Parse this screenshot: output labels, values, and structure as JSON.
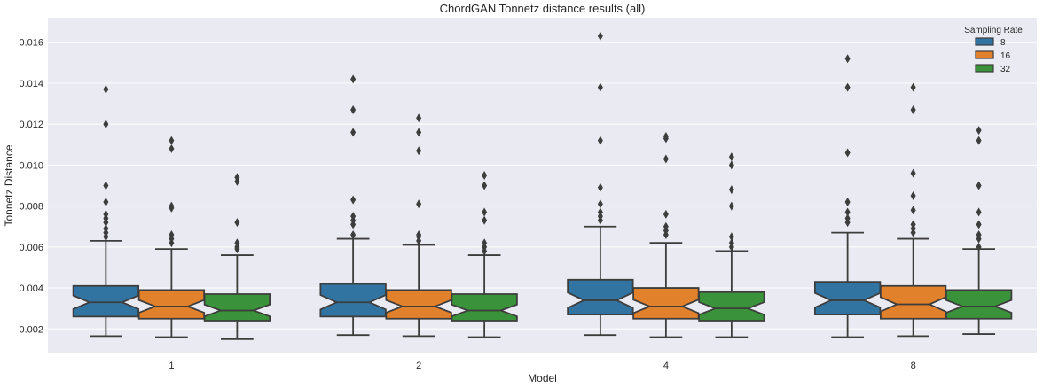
{
  "chart_data": {
    "type": "boxplot",
    "title": "ChordGAN Tonnetz distance results (all)",
    "xlabel": "Model",
    "ylabel": "Tonnetz Distance",
    "ylim": [
      0.0008,
      0.0172
    ],
    "yticks": [
      "0.002",
      "0.004",
      "0.006",
      "0.008",
      "0.010",
      "0.012",
      "0.014",
      "0.016"
    ],
    "grid": true,
    "legend": {
      "title": "Sampling Rate",
      "position": "top-right"
    },
    "categories": [
      "1",
      "2",
      "4",
      "8"
    ],
    "series": [
      {
        "name": "8",
        "color": "#3274a1",
        "boxes": [
          {
            "whislo": 0.00165,
            "q1": 0.0026,
            "med": 0.0033,
            "q3": 0.0041,
            "whishi": 0.0063,
            "fliers": [
              0.0065,
              0.0067,
              0.0069,
              0.0072,
              0.0074,
              0.0076,
              0.0082,
              0.009,
              0.012,
              0.0137
            ]
          },
          {
            "whislo": 0.0017,
            "q1": 0.0026,
            "med": 0.0033,
            "q3": 0.0042,
            "whishi": 0.0064,
            "fliers": [
              0.0066,
              0.0071,
              0.0073,
              0.0075,
              0.0083,
              0.0116,
              0.0127,
              0.0142
            ]
          },
          {
            "whislo": 0.0017,
            "q1": 0.0027,
            "med": 0.0034,
            "q3": 0.0044,
            "whishi": 0.007,
            "fliers": [
              0.0073,
              0.0075,
              0.0077,
              0.0081,
              0.0089,
              0.0112,
              0.0138,
              0.0163
            ]
          },
          {
            "whislo": 0.0016,
            "q1": 0.0027,
            "med": 0.0034,
            "q3": 0.0043,
            "whishi": 0.0067,
            "fliers": [
              0.0072,
              0.0074,
              0.0077,
              0.0082,
              0.0106,
              0.0138,
              0.0152
            ]
          }
        ]
      },
      {
        "name": "16",
        "color": "#e1812c",
        "boxes": [
          {
            "whislo": 0.0016,
            "q1": 0.0025,
            "med": 0.0031,
            "q3": 0.0039,
            "whishi": 0.0059,
            "fliers": [
              0.0062,
              0.0064,
              0.0066,
              0.0079,
              0.008,
              0.0108,
              0.0112
            ]
          },
          {
            "whislo": 0.00165,
            "q1": 0.0025,
            "med": 0.0031,
            "q3": 0.0039,
            "whishi": 0.0061,
            "fliers": [
              0.0063,
              0.0065,
              0.0066,
              0.0081,
              0.0107,
              0.0116,
              0.0123
            ]
          },
          {
            "whislo": 0.0016,
            "q1": 0.0025,
            "med": 0.0031,
            "q3": 0.004,
            "whishi": 0.0062,
            "fliers": [
              0.0066,
              0.0068,
              0.007,
              0.0076,
              0.0103,
              0.0113,
              0.0114
            ]
          },
          {
            "whislo": 0.00165,
            "q1": 0.0025,
            "med": 0.0032,
            "q3": 0.0041,
            "whishi": 0.0064,
            "fliers": [
              0.0067,
              0.0069,
              0.0071,
              0.0078,
              0.0085,
              0.0096,
              0.0127,
              0.0138
            ]
          }
        ]
      },
      {
        "name": "32",
        "color": "#3a923a",
        "boxes": [
          {
            "whislo": 0.0015,
            "q1": 0.0024,
            "med": 0.0029,
            "q3": 0.0037,
            "whishi": 0.0056,
            "fliers": [
              0.0059,
              0.006,
              0.0062,
              0.0072,
              0.0092,
              0.0094
            ]
          },
          {
            "whislo": 0.0016,
            "q1": 0.0024,
            "med": 0.0029,
            "q3": 0.0037,
            "whishi": 0.0056,
            "fliers": [
              0.0058,
              0.006,
              0.0062,
              0.0073,
              0.0077,
              0.009,
              0.0095
            ]
          },
          {
            "whislo": 0.0016,
            "q1": 0.0024,
            "med": 0.003,
            "q3": 0.0038,
            "whishi": 0.0058,
            "fliers": [
              0.006,
              0.0062,
              0.0065,
              0.008,
              0.0088,
              0.01,
              0.0104
            ]
          },
          {
            "whislo": 0.00175,
            "q1": 0.0025,
            "med": 0.0031,
            "q3": 0.0039,
            "whishi": 0.0059,
            "fliers": [
              0.006,
              0.0064,
              0.0066,
              0.0071,
              0.0077,
              0.009,
              0.0112,
              0.0117
            ]
          }
        ]
      }
    ]
  }
}
